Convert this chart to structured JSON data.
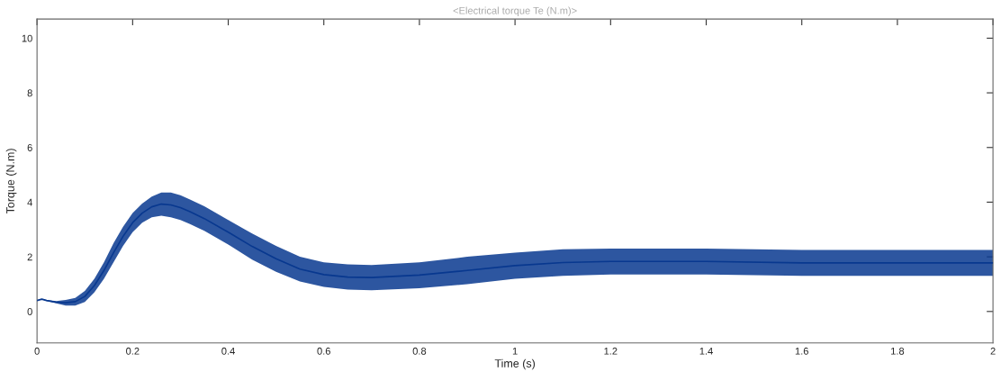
{
  "chart_data": {
    "type": "line",
    "title": "<Electrical torque Te (N.m)>",
    "xlabel": "Time (s)",
    "ylabel": "Torque (N.m)",
    "xlim": [
      0,
      2
    ],
    "xticks": [
      0,
      0.2,
      0.4,
      0.6,
      0.8,
      1,
      1.2,
      1.4,
      1.6,
      1.8,
      2
    ],
    "ylim": [
      -1.15,
      10.7
    ],
    "yticks": [
      0,
      2,
      4,
      6,
      8,
      10
    ],
    "grid": false,
    "legend": false,
    "series": [
      {
        "color": "#08388f",
        "x": [
          0,
          0.01,
          0.02,
          0.04,
          0.06,
          0.08,
          0.1,
          0.12,
          0.14,
          0.16,
          0.18,
          0.2,
          0.22,
          0.24,
          0.26,
          0.28,
          0.3,
          0.32,
          0.35,
          0.4,
          0.45,
          0.5,
          0.55,
          0.6,
          0.65,
          0.7,
          0.8,
          0.9,
          1.0,
          1.1,
          1.2,
          1.4,
          1.6,
          1.8,
          2.0
        ],
        "values": [
          0.4,
          0.45,
          0.4,
          0.34,
          0.32,
          0.36,
          0.55,
          0.95,
          1.5,
          2.15,
          2.75,
          3.25,
          3.6,
          3.83,
          3.93,
          3.9,
          3.8,
          3.65,
          3.4,
          2.9,
          2.38,
          1.93,
          1.55,
          1.35,
          1.26,
          1.24,
          1.33,
          1.5,
          1.68,
          1.79,
          1.83,
          1.83,
          1.78,
          1.78,
          1.78
        ],
        "lower": [
          0.4,
          0.45,
          0.38,
          0.3,
          0.22,
          0.22,
          0.35,
          0.7,
          1.2,
          1.8,
          2.4,
          2.9,
          3.25,
          3.45,
          3.5,
          3.45,
          3.35,
          3.2,
          2.95,
          2.45,
          1.9,
          1.45,
          1.1,
          0.9,
          0.8,
          0.78,
          0.85,
          1.0,
          1.2,
          1.3,
          1.35,
          1.35,
          1.3,
          1.3,
          1.3
        ],
        "upper": [
          0.4,
          0.45,
          0.42,
          0.38,
          0.42,
          0.5,
          0.75,
          1.2,
          1.8,
          2.5,
          3.1,
          3.6,
          3.95,
          4.2,
          4.35,
          4.35,
          4.25,
          4.1,
          3.85,
          3.35,
          2.85,
          2.4,
          2.0,
          1.8,
          1.72,
          1.7,
          1.8,
          2.0,
          2.15,
          2.28,
          2.3,
          2.3,
          2.25,
          2.25,
          2.25
        ]
      }
    ]
  }
}
